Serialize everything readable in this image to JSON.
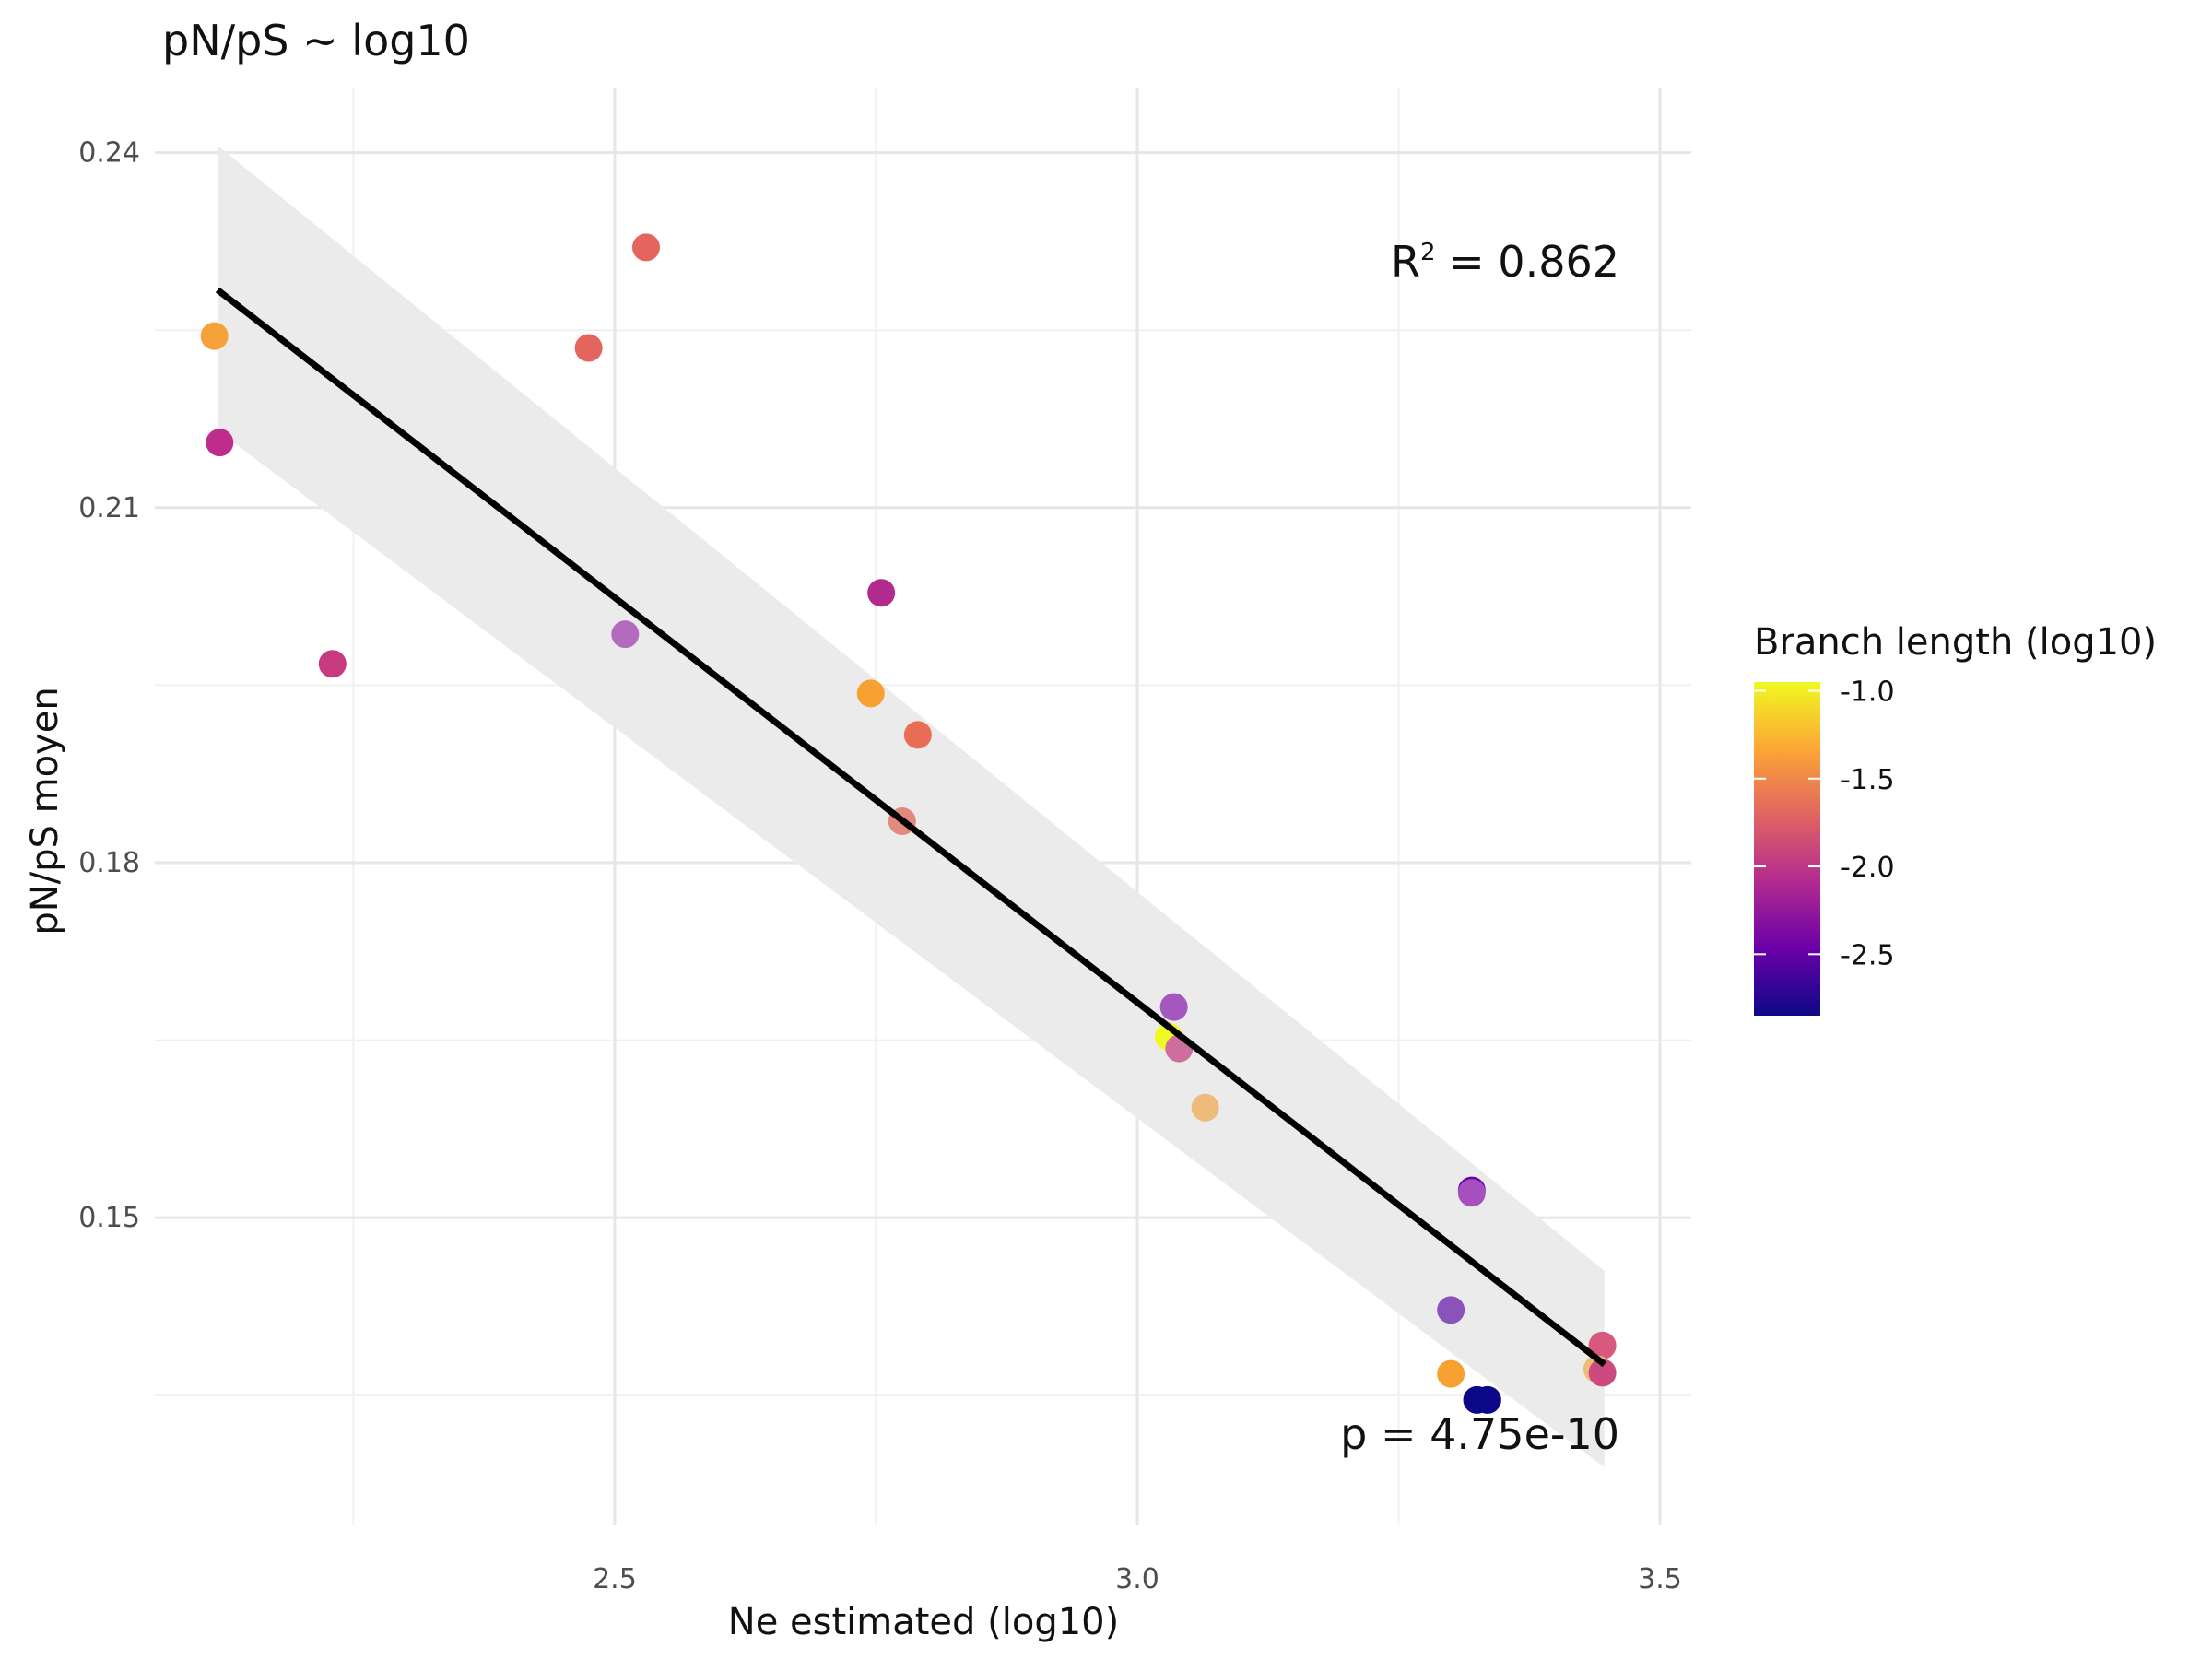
{
  "chart_data": {
    "type": "scatter",
    "title": "pN/pS ~ log10",
    "xlabel": "Ne estimated (log10)",
    "ylabel": "pN/pS moyen",
    "xlim": [
      2.06,
      3.53
    ],
    "ylim": [
      0.124,
      0.2455
    ],
    "x_ticks": [
      2.5,
      3.0,
      3.5
    ],
    "x_tick_labels": [
      "2.5",
      "3.0",
      "3.5"
    ],
    "x_minor_ticks": [
      2.25,
      2.75,
      3.25
    ],
    "y_ticks": [
      0.15,
      0.18,
      0.21,
      0.24
    ],
    "y_tick_labels": [
      "0.15",
      "0.18",
      "0.21",
      "0.24"
    ],
    "y_minor_ticks": [
      0.135,
      0.165,
      0.195,
      0.225
    ],
    "grid": true,
    "annotations": {
      "r2_label": "R",
      "r2_sup": "2",
      "r2_value": " = 0.862",
      "p_value": "p = 4.75e-10"
    },
    "regression": {
      "x": [
        2.12,
        3.447
      ],
      "y": [
        0.2284,
        0.1376
      ],
      "band_upper": [
        0.2406,
        0.1455
      ],
      "band_lower": [
        0.2165,
        0.1289
      ],
      "line_color": "#000000",
      "band_color": "#ebebeb"
    },
    "colorbar": {
      "title": "Branch length (log10)",
      "min": -2.85,
      "max": -0.95,
      "ticks": [
        -1.0,
        -1.5,
        -2.0,
        -2.5
      ],
      "tick_labels": [
        "-1.0",
        "-1.5",
        "-2.0",
        "-2.5"
      ],
      "colors": [
        "#0d0887",
        "#6a00a8",
        "#b12a90",
        "#e16462",
        "#fca636",
        "#f0f921"
      ],
      "placement": "right"
    },
    "points": [
      {
        "x": 2.117,
        "y": 0.2245,
        "color": "#f5a23a"
      },
      {
        "x": 2.122,
        "y": 0.2155,
        "color": "#be2d8c"
      },
      {
        "x": 2.23,
        "y": 0.1968,
        "color": "#c83a7e"
      },
      {
        "x": 2.475,
        "y": 0.2235,
        "color": "#e3655e"
      },
      {
        "x": 2.53,
        "y": 0.232,
        "color": "#e3655e"
      },
      {
        "x": 2.51,
        "y": 0.1993,
        "color": "#b56bbd"
      },
      {
        "x": 2.755,
        "y": 0.2028,
        "color": "#b22a8e"
      },
      {
        "x": 2.745,
        "y": 0.1943,
        "color": "#f7a133"
      },
      {
        "x": 2.79,
        "y": 0.1908,
        "color": "#e96c55"
      },
      {
        "x": 2.775,
        "y": 0.1835,
        "color": "#e38a7e"
      },
      {
        "x": 3.03,
        "y": 0.1653,
        "color": "#f0f921"
      },
      {
        "x": 3.035,
        "y": 0.1678,
        "color": "#a457bd"
      },
      {
        "x": 3.04,
        "y": 0.1643,
        "color": "#cd6e9e"
      },
      {
        "x": 3.065,
        "y": 0.1593,
        "color": "#efbb7a"
      },
      {
        "x": 3.32,
        "y": 0.1523,
        "color": "#6a00a8"
      },
      {
        "x": 3.32,
        "y": 0.1521,
        "color": "#a650bf"
      },
      {
        "x": 3.3,
        "y": 0.1422,
        "color": "#8953ba"
      },
      {
        "x": 3.3,
        "y": 0.1368,
        "color": "#f7a133"
      },
      {
        "x": 3.325,
        "y": 0.1346,
        "color": "#0d0887"
      },
      {
        "x": 3.335,
        "y": 0.1346,
        "color": "#0d0887"
      },
      {
        "x": 3.445,
        "y": 0.1392,
        "color": "#d9587d"
      },
      {
        "x": 3.44,
        "y": 0.1372,
        "color": "#efbb7a"
      },
      {
        "x": 3.445,
        "y": 0.1369,
        "color": "#cc4a7f"
      }
    ]
  }
}
